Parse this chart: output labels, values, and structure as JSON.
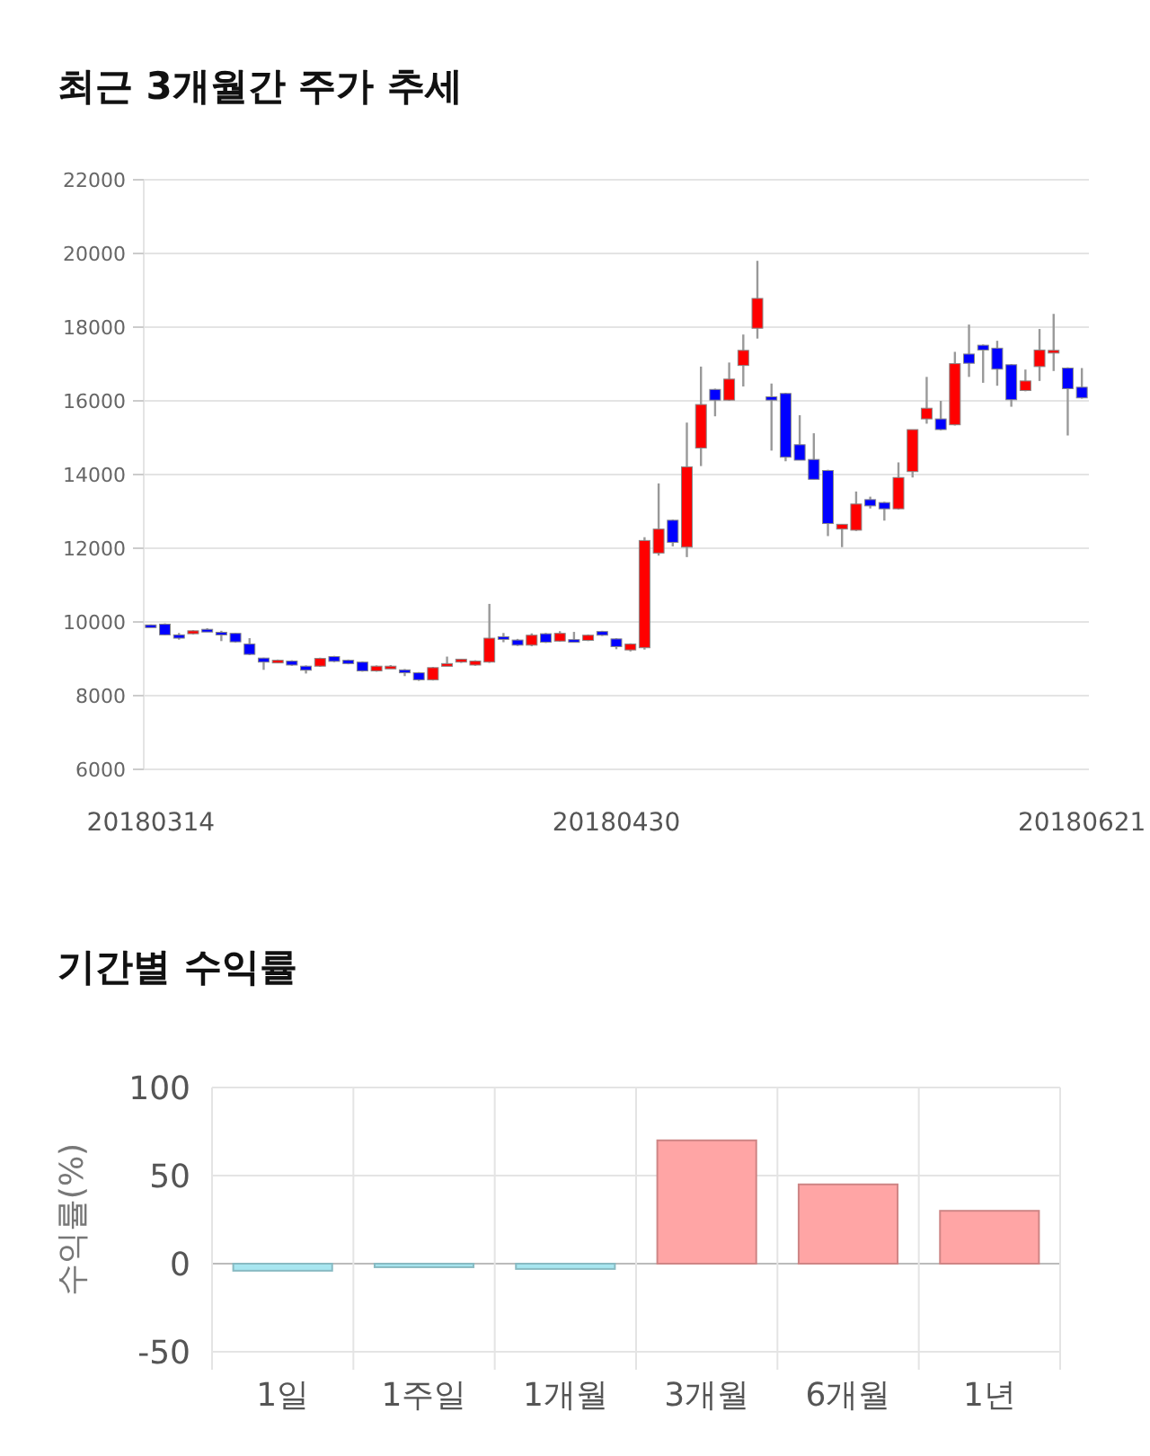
{
  "chart_data": [
    {
      "type": "candlestick",
      "title": "최근 3개월간 주가 추세",
      "categories": [
        "20180314",
        null,
        null,
        null,
        null,
        null,
        null,
        null,
        null,
        null,
        null,
        null,
        null,
        null,
        null,
        null,
        null,
        null,
        null,
        null,
        null,
        null,
        null,
        null,
        null,
        null,
        null,
        null,
        null,
        null,
        null,
        null,
        null,
        "20180430",
        null,
        null,
        null,
        null,
        null,
        null,
        null,
        null,
        null,
        null,
        null,
        null,
        null,
        null,
        null,
        null,
        null,
        null,
        null,
        null,
        null,
        null,
        null,
        null,
        null,
        null,
        null,
        null,
        null,
        null,
        null,
        null,
        "20180621"
      ],
      "ohlc": [
        [
          9920,
          9930,
          9880,
          9900
        ],
        [
          9940,
          9960,
          9640,
          9650
        ],
        [
          9650,
          9700,
          9520,
          9560
        ],
        [
          9680,
          9780,
          9660,
          9760
        ],
        [
          9800,
          9830,
          9740,
          9760
        ],
        [
          9720,
          9760,
          9480,
          9700
        ],
        [
          9690,
          9700,
          9440,
          9460
        ],
        [
          9400,
          9560,
          9100,
          9120
        ],
        [
          9020,
          9030,
          8700,
          8910
        ],
        [
          8900,
          8980,
          8880,
          8960
        ],
        [
          8940,
          8960,
          8810,
          8830
        ],
        [
          8800,
          8820,
          8600,
          8690
        ],
        [
          8800,
          9030,
          8780,
          9010
        ],
        [
          9060,
          9080,
          8910,
          8930
        ],
        [
          8960,
          8980,
          8850,
          8870
        ],
        [
          8910,
          8930,
          8650,
          8670
        ],
        [
          8670,
          8820,
          8650,
          8800
        ],
        [
          8790,
          8830,
          8770,
          8800
        ],
        [
          8700,
          8720,
          8530,
          8620
        ],
        [
          8620,
          8640,
          8400,
          8430
        ],
        [
          8430,
          8780,
          8410,
          8760
        ],
        [
          8860,
          9060,
          8850,
          8870
        ],
        [
          8910,
          9000,
          8890,
          8990
        ],
        [
          8830,
          8960,
          8810,
          8940
        ],
        [
          8910,
          10490,
          8890,
          9560
        ],
        [
          9600,
          9700,
          9450,
          9590
        ],
        [
          9510,
          9540,
          9350,
          9370
        ],
        [
          9370,
          9690,
          9340,
          9640
        ],
        [
          9680,
          9700,
          9430,
          9450
        ],
        [
          9480,
          9750,
          9460,
          9690
        ],
        [
          9520,
          9730,
          9500,
          9510
        ],
        [
          9500,
          9660,
          9480,
          9640
        ],
        [
          9740,
          9760,
          9620,
          9640
        ],
        [
          9540,
          9560,
          9260,
          9330
        ],
        [
          9240,
          9420,
          9200,
          9400
        ],
        [
          9300,
          12300,
          9250,
          12210
        ],
        [
          11870,
          13760,
          11800,
          12520
        ],
        [
          12760,
          12780,
          12050,
          12160
        ],
        [
          12030,
          15410,
          11760,
          14210
        ],
        [
          14720,
          16930,
          14230,
          15900
        ],
        [
          16310,
          16330,
          15580,
          16020
        ],
        [
          16020,
          17040,
          16000,
          16590
        ],
        [
          16960,
          17800,
          16390,
          17370
        ],
        [
          17970,
          19800,
          17690,
          18780
        ],
        [
          16110,
          16470,
          14650,
          16020
        ],
        [
          16200,
          16220,
          14360,
          14470
        ],
        [
          14810,
          15610,
          14390,
          14390
        ],
        [
          14410,
          15120,
          13870,
          13870
        ],
        [
          14110,
          14130,
          12330,
          12670
        ],
        [
          12520,
          12650,
          12030,
          12650
        ],
        [
          12490,
          13540,
          12470,
          13200
        ],
        [
          13320,
          13400,
          13080,
          13150
        ],
        [
          13240,
          13260,
          12750,
          13070
        ],
        [
          13070,
          14330,
          13050,
          13920
        ],
        [
          14080,
          15220,
          13920,
          15220
        ],
        [
          15510,
          16650,
          15380,
          15800
        ],
        [
          15510,
          16000,
          15200,
          15220
        ],
        [
          15350,
          17330,
          15330,
          17010
        ],
        [
          17270,
          18070,
          16650,
          17020
        ],
        [
          17510,
          17530,
          16490,
          17380
        ],
        [
          17430,
          17630,
          16410,
          16860
        ],
        [
          16980,
          17000,
          15840,
          16030
        ],
        [
          16280,
          16850,
          16260,
          16540
        ],
        [
          16930,
          17950,
          16540,
          17380
        ],
        [
          17360,
          18360,
          16810,
          17370
        ],
        [
          16890,
          16910,
          15060,
          16330
        ],
        [
          16370,
          16890,
          16060,
          16080
        ]
      ],
      "colors": [
        "#0000ff",
        "#0000ff",
        "#0000ff",
        "#ff0000",
        "#0000ff",
        "#0000ff",
        "#0000ff",
        "#0000ff",
        "#0000ff",
        "#ff0000",
        "#0000ff",
        "#0000ff",
        "#ff0000",
        "#0000ff",
        "#0000ff",
        "#0000ff",
        "#ff0000",
        "#ff0000",
        "#0000ff",
        "#0000ff",
        "#ff0000",
        "#ff0000",
        "#ff0000",
        "#ff0000",
        "#ff0000",
        "#0000ff",
        "#0000ff",
        "#ff0000",
        "#0000ff",
        "#ff0000",
        "#0000ff",
        "#ff0000",
        "#0000ff",
        "#0000ff",
        "#ff0000",
        "#ff0000",
        "#ff0000",
        "#0000ff",
        "#ff0000",
        "#ff0000",
        "#0000ff",
        "#ff0000",
        "#ff0000",
        "#ff0000",
        "#0000ff",
        "#0000ff",
        "#0000ff",
        "#0000ff",
        "#0000ff",
        "#ff0000",
        "#ff0000",
        "#0000ff",
        "#0000ff",
        "#ff0000",
        "#ff0000",
        "#ff0000",
        "#0000ff",
        "#ff0000",
        "#0000ff",
        "#0000ff",
        "#0000ff",
        "#0000ff",
        "#ff0000",
        "#ff0000",
        "#ff0000",
        "#0000ff",
        "#0000ff"
      ],
      "ylim": [
        6000,
        22000
      ],
      "yticks": [
        6000,
        8000,
        10000,
        12000,
        14000,
        16000,
        18000,
        20000,
        22000
      ],
      "grid": "y"
    },
    {
      "type": "bar",
      "title": "기간별 수익률",
      "ylabel": "수익률(%)",
      "categories": [
        "1일",
        "1주일",
        "1개월",
        "3개월",
        "6개월",
        "1년"
      ],
      "values": [
        -4,
        -2,
        -3,
        70,
        45,
        30
      ],
      "colors": [
        "#a8e6f0",
        "#a8e6f0",
        "#a8e6f0",
        "#ffa5a5",
        "#ffa5a5",
        "#ffa5a5"
      ],
      "ylim": [
        -50,
        100
      ],
      "yticks": [
        -50,
        0,
        50,
        100
      ],
      "grid": true
    }
  ]
}
